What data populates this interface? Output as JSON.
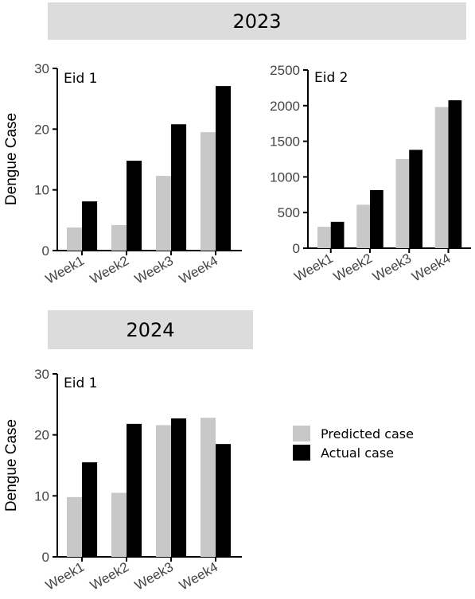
{
  "banners": {
    "year_2023": "2023",
    "year_2024": "2024"
  },
  "colors": {
    "predicted": "#c8c8c8",
    "actual": "#000000",
    "banner": "#dcdcdc"
  },
  "legend": {
    "predicted": "Predicted case",
    "actual": "Actual case"
  },
  "chart_data": [
    {
      "type": "bar",
      "year": "2023",
      "panel_label": "Eid 1",
      "ylabel": "Dengue Case",
      "ylim": [
        0,
        30
      ],
      "yticks": [
        0,
        10,
        20,
        30
      ],
      "categories": [
        "Week1",
        "Week2",
        "Week3",
        "Week4"
      ],
      "series": [
        {
          "name": "Predicted case",
          "values": [
            3.8,
            4.2,
            12.3,
            19.5
          ]
        },
        {
          "name": "Actual case",
          "values": [
            8.1,
            14.8,
            20.8,
            27.1
          ]
        }
      ]
    },
    {
      "type": "bar",
      "year": "2023",
      "panel_label": "Eid 2",
      "ylabel": "",
      "ylim": [
        0,
        2500
      ],
      "yticks": [
        0,
        500,
        1000,
        1500,
        2000,
        2500
      ],
      "categories": [
        "Week1",
        "Week2",
        "Week3",
        "Week4"
      ],
      "series": [
        {
          "name": "Predicted case",
          "values": [
            300,
            610,
            1250,
            1980
          ]
        },
        {
          "name": "Actual case",
          "values": [
            370,
            815,
            1380,
            2075
          ]
        }
      ]
    },
    {
      "type": "bar",
      "year": "2024",
      "panel_label": "Eid 1",
      "ylabel": "Dengue Case",
      "ylim": [
        0,
        30
      ],
      "yticks": [
        0,
        10,
        20,
        30
      ],
      "categories": [
        "Week1",
        "Week2",
        "Week3",
        "Week4"
      ],
      "series": [
        {
          "name": "Predicted case",
          "values": [
            9.8,
            10.5,
            21.6,
            22.8
          ]
        },
        {
          "name": "Actual case",
          "values": [
            15.5,
            21.8,
            22.7,
            18.5
          ]
        }
      ]
    }
  ]
}
